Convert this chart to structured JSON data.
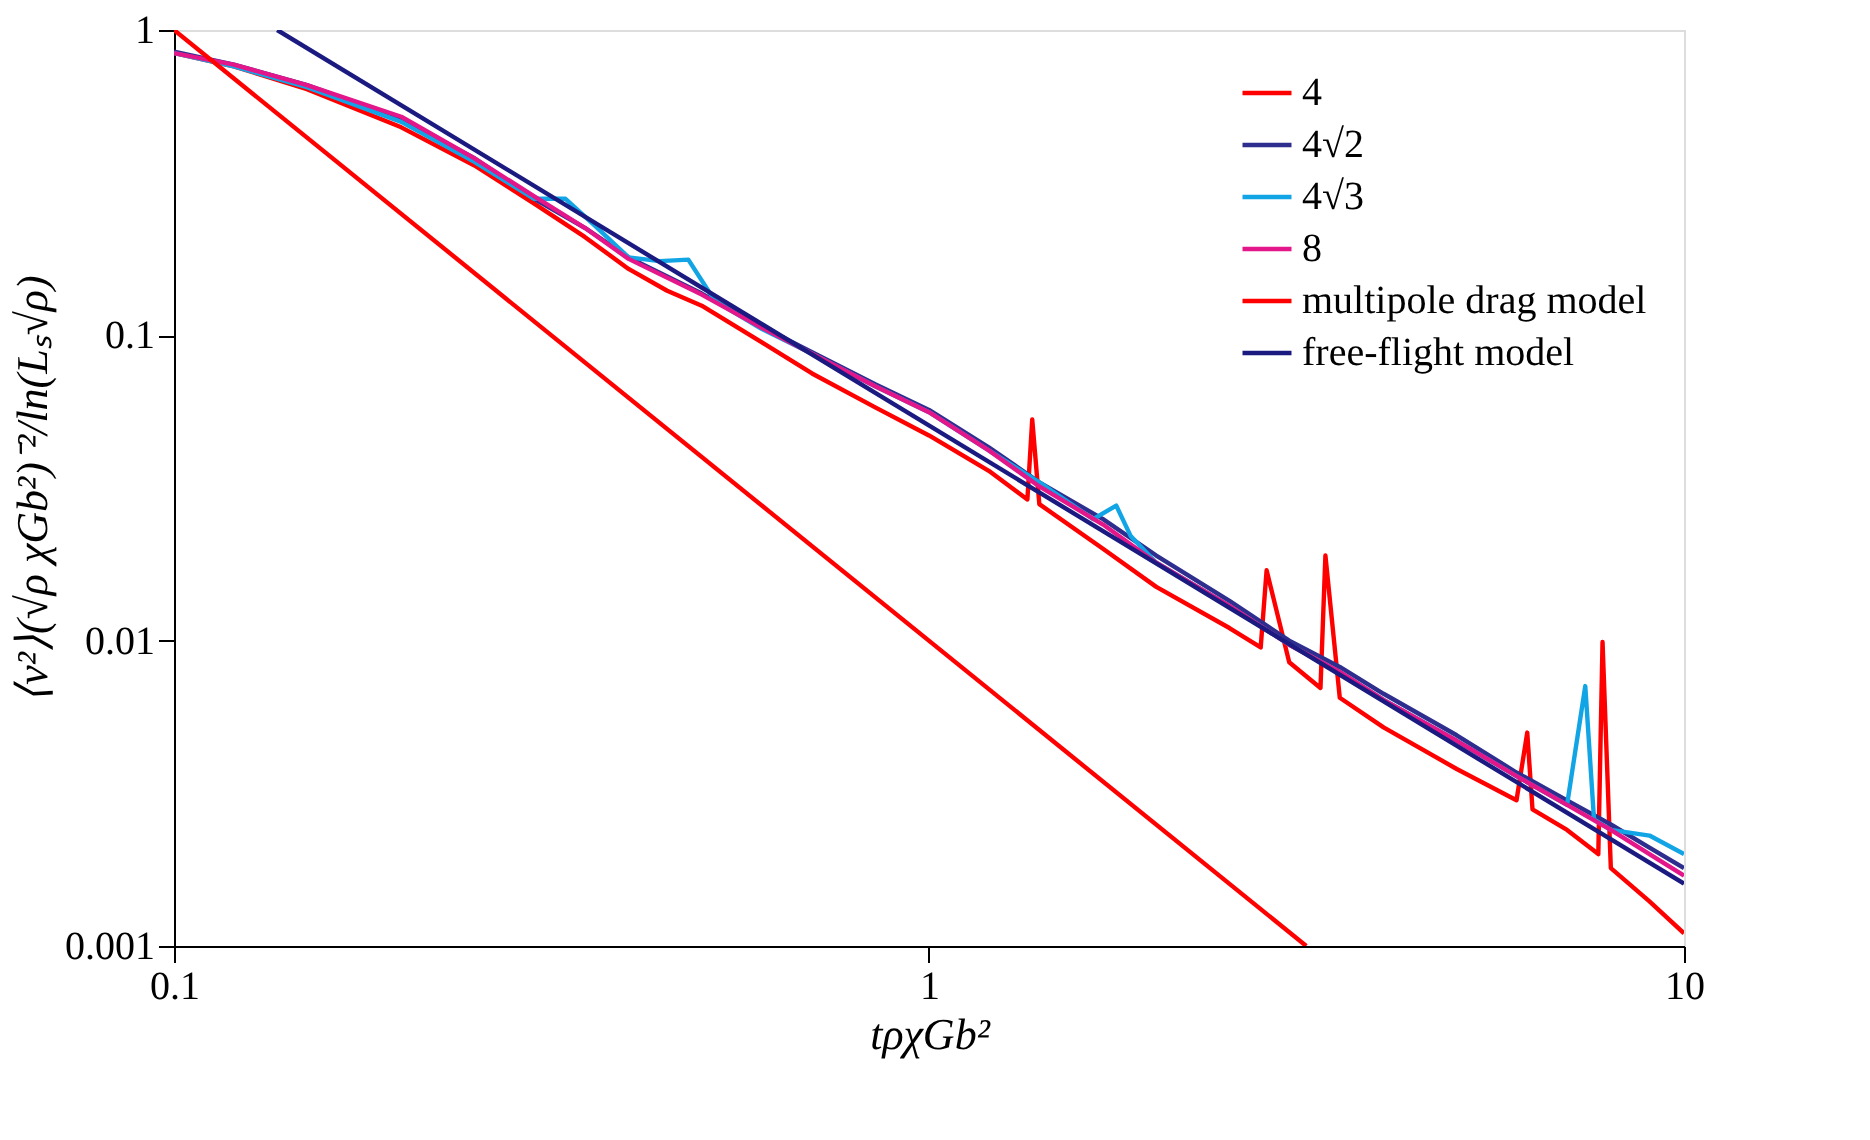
{
  "chart_data": {
    "type": "line",
    "xlabel": "tρχGb²",
    "ylabel": "⟨v²⟩(√ρ χGb²)⁻²/ln(Lₛ√ρ)",
    "log": "xy",
    "xlim": [
      0.1,
      10
    ],
    "ylim": [
      0.001,
      1
    ],
    "xticks": [
      0.1,
      1,
      10
    ],
    "yticks": [
      0.001,
      0.01,
      0.1,
      1
    ],
    "grid": false,
    "legend": "top right",
    "marker": "none",
    "line_style": "solid",
    "series": [
      {
        "name": "4",
        "color": "#ff0000",
        "x": [
          0.1,
          0.12,
          0.15,
          0.2,
          0.25,
          0.3,
          0.35,
          0.4,
          0.45,
          0.5,
          0.6,
          0.7,
          0.85,
          1,
          1.2,
          1.35,
          1.37,
          1.4,
          1.7,
          2,
          2.5,
          2.75,
          2.8,
          3,
          3.3,
          3.35,
          3.5,
          4,
          5,
          6,
          6.2,
          6.3,
          7,
          7.7,
          7.8,
          8,
          9,
          10
        ],
        "values": [
          0.84,
          0.76,
          0.64,
          0.48,
          0.36,
          0.27,
          0.21,
          0.165,
          0.14,
          0.125,
          0.095,
          0.075,
          0.058,
          0.047,
          0.036,
          0.029,
          0.053,
          0.028,
          0.02,
          0.015,
          0.011,
          0.0095,
          0.017,
          0.0085,
          0.007,
          0.019,
          0.0065,
          0.0052,
          0.0038,
          0.003,
          0.005,
          0.0028,
          0.0024,
          0.002,
          0.0099,
          0.0018,
          0.0014,
          0.0011
        ]
      },
      {
        "name": "4√2",
        "color": "#2e2e8f",
        "x": [
          0.1,
          0.12,
          0.15,
          0.2,
          0.25,
          0.3,
          0.35,
          0.4,
          0.5,
          0.6,
          0.7,
          0.85,
          1,
          1.2,
          1.4,
          1.7,
          2,
          2.5,
          3,
          3.5,
          4,
          5,
          6,
          7,
          8,
          9,
          10
        ],
        "values": [
          0.85,
          0.77,
          0.66,
          0.51,
          0.38,
          0.28,
          0.225,
          0.18,
          0.137,
          0.107,
          0.088,
          0.069,
          0.057,
          0.043,
          0.033,
          0.025,
          0.019,
          0.0135,
          0.01,
          0.0082,
          0.0067,
          0.0049,
          0.0037,
          0.003,
          0.0025,
          0.0021,
          0.0018
        ]
      },
      {
        "name": "4√3",
        "color": "#12a5e6",
        "x": [
          0.1,
          0.12,
          0.15,
          0.2,
          0.25,
          0.3,
          0.33,
          0.36,
          0.4,
          0.44,
          0.48,
          0.52,
          0.6,
          0.7,
          0.85,
          1,
          1.2,
          1.4,
          1.65,
          1.77,
          1.85,
          2,
          2.5,
          3,
          3.5,
          4,
          5,
          6,
          7,
          7.4,
          7.6,
          8,
          9,
          10
        ],
        "values": [
          0.84,
          0.76,
          0.65,
          0.5,
          0.37,
          0.28,
          0.28,
          0.23,
          0.18,
          0.175,
          0.177,
          0.13,
          0.105,
          0.087,
          0.068,
          0.056,
          0.042,
          0.033,
          0.025,
          0.0277,
          0.022,
          0.018,
          0.013,
          0.0097,
          0.0079,
          0.0064,
          0.0047,
          0.0036,
          0.0029,
          0.0071,
          0.0026,
          0.0024,
          0.0023,
          0.002
        ]
      },
      {
        "name": "8",
        "color": "#e3168a",
        "x": [
          0.1,
          0.12,
          0.15,
          0.2,
          0.25,
          0.3,
          0.35,
          0.4,
          0.5,
          0.6,
          0.7,
          0.85,
          1,
          1.2,
          1.4,
          1.7,
          2,
          2.5,
          3,
          3.5,
          4,
          5,
          6,
          7,
          8,
          9,
          10
        ],
        "values": [
          0.84,
          0.77,
          0.66,
          0.52,
          0.38,
          0.285,
          0.225,
          0.178,
          0.136,
          0.106,
          0.087,
          0.068,
          0.056,
          0.042,
          0.032,
          0.024,
          0.018,
          0.013,
          0.0097,
          0.0079,
          0.0064,
          0.0047,
          0.0036,
          0.0029,
          0.0024,
          0.002,
          0.0017
        ]
      },
      {
        "name": "multipole drag model",
        "color": "#ff0000",
        "x": [
          0.1,
          3.16
        ],
        "values": [
          1,
          0.001
        ]
      },
      {
        "name": "free-flight model",
        "color": "#1a1a80",
        "x": [
          0.137,
          10
        ],
        "values": [
          1,
          0.0016
        ]
      }
    ]
  }
}
